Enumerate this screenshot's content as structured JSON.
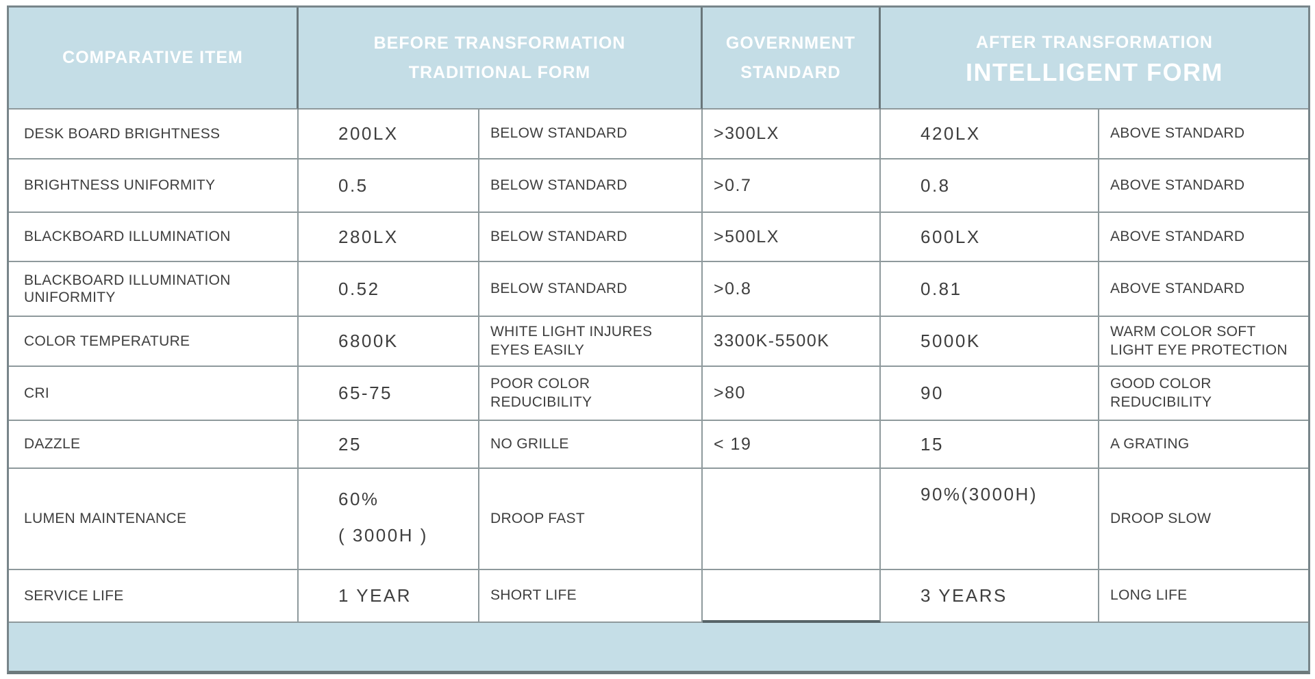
{
  "header": {
    "comparative_item": "COMPARATIVE ITEM",
    "before_line1": "BEFORE TRANSFORMATION",
    "before_line2": "TRADITIONAL FORM",
    "government_line1": "GOVERNMENT",
    "government_line2": "STANDARD",
    "after_line1": "AFTER TRANSFORMATION",
    "after_line2": "INTELLIGENT FORM"
  },
  "rows": [
    {
      "item": "DESK BOARD BRIGHTNESS",
      "before_value": "200LX",
      "before_status": "BELOW STANDARD",
      "standard": ">300LX",
      "after_value": "420LX",
      "after_status": "ABOVE STANDARD"
    },
    {
      "item": "BRIGHTNESS UNIFORMITY",
      "before_value": "0.5",
      "before_status": "BELOW STANDARD",
      "standard": ">0.7",
      "after_value": "0.8",
      "after_status": "ABOVE STANDARD"
    },
    {
      "item": "BLACKBOARD ILLUMINATION",
      "before_value": "280LX",
      "before_status": "BELOW STANDARD",
      "standard": ">500LX",
      "after_value": "600LX",
      "after_status": "ABOVE STANDARD"
    },
    {
      "item": "BLACKBOARD ILLUMINATION\nUNIFORMITY",
      "before_value": "0.52",
      "before_status": "BELOW STANDARD",
      "standard": ">0.8",
      "after_value": "0.81",
      "after_status": "ABOVE STANDARD"
    },
    {
      "item": "COLOR TEMPERATURE",
      "before_value": "6800K",
      "before_status": "WHITE LIGHT INJURES\nEYES EASILY",
      "standard": "3300K-5500K",
      "after_value": "5000K",
      "after_status": "WARM COLOR SOFT\nLIGHT EYE PROTECTION"
    },
    {
      "item": "CRI",
      "before_value": "65-75",
      "before_status": "POOR COLOR\nREDUCIBILITY",
      "standard": ">80",
      "after_value": "90",
      "after_status": "GOOD COLOR\nREDUCIBILITY"
    },
    {
      "item": "DAZZLE",
      "before_value": "25",
      "before_status": "NO GRILLE",
      "standard": "< 19",
      "after_value": "15",
      "after_status": "A GRATING"
    },
    {
      "item": "LUMEN MAINTENANCE",
      "before_value": "60%",
      "before_value2": "( 3000H )",
      "before_status": "DROOP FAST",
      "standard": "",
      "after_value": "90%(3000H)",
      "after_status": "DROOP SLOW"
    },
    {
      "item": "SERVICE LIFE",
      "before_value": "1 YEAR",
      "before_status": "SHORT LIFE",
      "standard": "",
      "after_value": "3 YEARS",
      "after_status": "LONG LIFE"
    }
  ],
  "colors": {
    "header_bg": "#c4dde6",
    "footer_bg": "#c5dee7",
    "inner_border": "#8e999c",
    "outer_border": "#78858a",
    "header_divider": "#69767a",
    "text": "#3e3e3e",
    "header_text": "#ffffff"
  }
}
